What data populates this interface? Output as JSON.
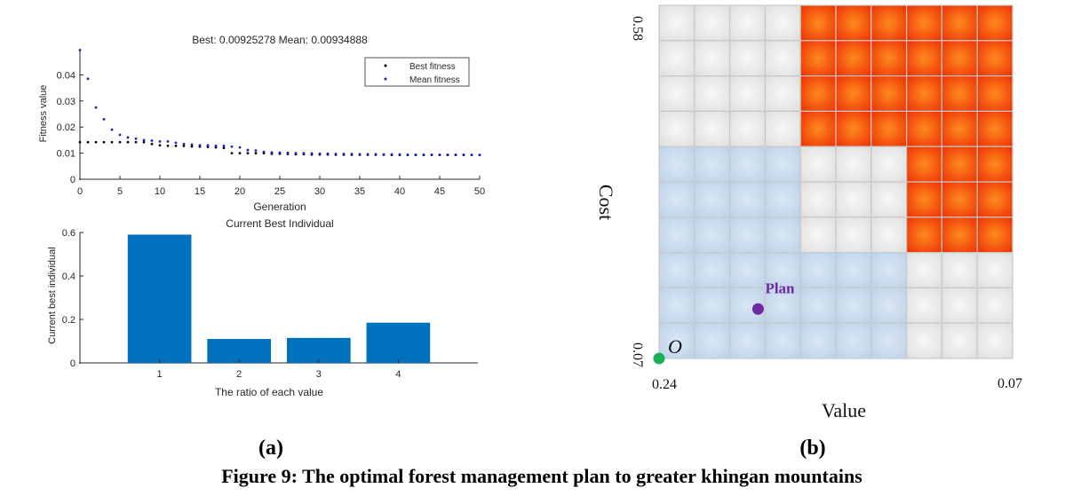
{
  "chart_data": [
    {
      "type": "scatter",
      "title": "Best: 0.00925278 Mean: 0.00934888",
      "xlabel": "Generation",
      "ylabel": "Fitness value",
      "xlim": [
        0,
        50
      ],
      "ylim": [
        0,
        0.05
      ],
      "x_ticks": [
        "0",
        "5",
        "10",
        "15",
        "20",
        "25",
        "30",
        "35",
        "40",
        "45",
        "50"
      ],
      "y_ticks": [
        "0",
        "0.01",
        "0.02",
        "0.03",
        "0.04"
      ],
      "legend_position": "top-right",
      "series": [
        {
          "name": "Best fitness",
          "color": "#000000",
          "x": [
            0,
            1,
            2,
            3,
            4,
            5,
            6,
            7,
            8,
            9,
            10,
            11,
            12,
            13,
            14,
            15,
            16,
            17,
            18,
            19,
            20,
            21,
            22,
            23,
            24,
            25,
            26,
            27,
            28,
            29,
            30,
            31,
            32,
            33,
            34,
            35,
            36,
            37,
            38,
            39,
            40,
            41,
            42,
            43,
            44,
            45,
            46,
            47,
            48,
            49,
            50
          ],
          "y": [
            0.0142,
            0.0142,
            0.0142,
            0.0142,
            0.0142,
            0.0142,
            0.0142,
            0.0142,
            0.0142,
            0.0135,
            0.013,
            0.0128,
            0.0128,
            0.0128,
            0.0126,
            0.0125,
            0.0124,
            0.0122,
            0.012,
            0.01,
            0.01,
            0.01,
            0.01,
            0.01,
            0.0098,
            0.0098,
            0.0097,
            0.0096,
            0.0096,
            0.0095,
            0.0095,
            0.0095,
            0.0094,
            0.0094,
            0.0094,
            0.0094,
            0.0094,
            0.0094,
            0.0094,
            0.0093,
            0.0093,
            0.0093,
            0.0093,
            0.0093,
            0.0093,
            0.0093,
            0.0093,
            0.0093,
            0.0093,
            0.0093,
            0.0093
          ]
        },
        {
          "name": "Mean fitness",
          "color": "#1f1fbf",
          "x": [
            0,
            1,
            2,
            3,
            4,
            5,
            6,
            7,
            8,
            9,
            10,
            11,
            12,
            13,
            14,
            15,
            16,
            17,
            18,
            19,
            20,
            21,
            22,
            23,
            24,
            25,
            26,
            27,
            28,
            29,
            30,
            31,
            32,
            33,
            34,
            35,
            36,
            37,
            38,
            39,
            40,
            41,
            42,
            43,
            44,
            45,
            46,
            47,
            48,
            49,
            50
          ],
          "y": [
            0.0495,
            0.0385,
            0.0275,
            0.023,
            0.019,
            0.017,
            0.016,
            0.0155,
            0.015,
            0.0148,
            0.0145,
            0.0145,
            0.014,
            0.0135,
            0.0133,
            0.013,
            0.013,
            0.0128,
            0.0128,
            0.0125,
            0.0122,
            0.0112,
            0.011,
            0.0105,
            0.0103,
            0.0102,
            0.0101,
            0.01,
            0.01,
            0.0099,
            0.0098,
            0.0098,
            0.0097,
            0.0097,
            0.0097,
            0.0096,
            0.0096,
            0.0096,
            0.0095,
            0.0095,
            0.0095,
            0.0094,
            0.0094,
            0.0094,
            0.0094,
            0.0094,
            0.0094,
            0.0094,
            0.0094,
            0.0093,
            0.0093
          ]
        }
      ]
    },
    {
      "type": "bar",
      "title": "Current Best Individual",
      "xlabel": "The ratio of each value",
      "ylabel": "Current best individual",
      "categories": [
        "1",
        "2",
        "3",
        "4"
      ],
      "values": [
        0.59,
        0.11,
        0.115,
        0.185
      ],
      "ylim": [
        0,
        0.6
      ],
      "y_ticks": [
        "0",
        "0.2",
        "0.4",
        "0.6"
      ],
      "bar_color": "#0072bd"
    },
    {
      "type": "heatmap",
      "xlabel": "Value",
      "ylabel": "Cost",
      "x_start_label": "0.24",
      "x_end_label": "0.07",
      "y_start_label": "0.07",
      "y_end_label": "0.58",
      "grid_rows": 10,
      "grid_cols": 10,
      "cell_colors": {
        "blue": "#c9dcee",
        "gray": "#ececec",
        "orange": "#f25a08"
      },
      "cells": [
        [
          "g",
          "g",
          "g",
          "g",
          "o",
          "o",
          "o",
          "o",
          "o",
          "o"
        ],
        [
          "g",
          "g",
          "g",
          "g",
          "o",
          "o",
          "o",
          "o",
          "o",
          "o"
        ],
        [
          "g",
          "g",
          "g",
          "g",
          "o",
          "o",
          "o",
          "o",
          "o",
          "o"
        ],
        [
          "g",
          "g",
          "g",
          "g",
          "o",
          "o",
          "o",
          "o",
          "o",
          "o"
        ],
        [
          "b",
          "b",
          "b",
          "b",
          "g",
          "g",
          "g",
          "o",
          "o",
          "o"
        ],
        [
          "b",
          "b",
          "b",
          "b",
          "g",
          "g",
          "g",
          "o",
          "o",
          "o"
        ],
        [
          "b",
          "b",
          "b",
          "b",
          "g",
          "g",
          "g",
          "o",
          "o",
          "o"
        ],
        [
          "b",
          "b",
          "b",
          "b",
          "b",
          "b",
          "b",
          "g",
          "g",
          "g"
        ],
        [
          "b",
          "b",
          "b",
          "b",
          "b",
          "b",
          "b",
          "g",
          "g",
          "g"
        ],
        [
          "b",
          "b",
          "b",
          "b",
          "b",
          "b",
          "b",
          "g",
          "g",
          "g"
        ]
      ],
      "points": [
        {
          "label": "Plan",
          "col": 2.8,
          "row": 1.4,
          "color": "#6d2aa3"
        },
        {
          "label": "O",
          "col": 0,
          "row": 0,
          "color": "#1bb05a"
        }
      ]
    }
  ],
  "labels": {
    "panel_a": "(a)",
    "panel_b": "(b)",
    "caption": "Figure 9: The optimal forest management plan to greater khingan mountains"
  }
}
